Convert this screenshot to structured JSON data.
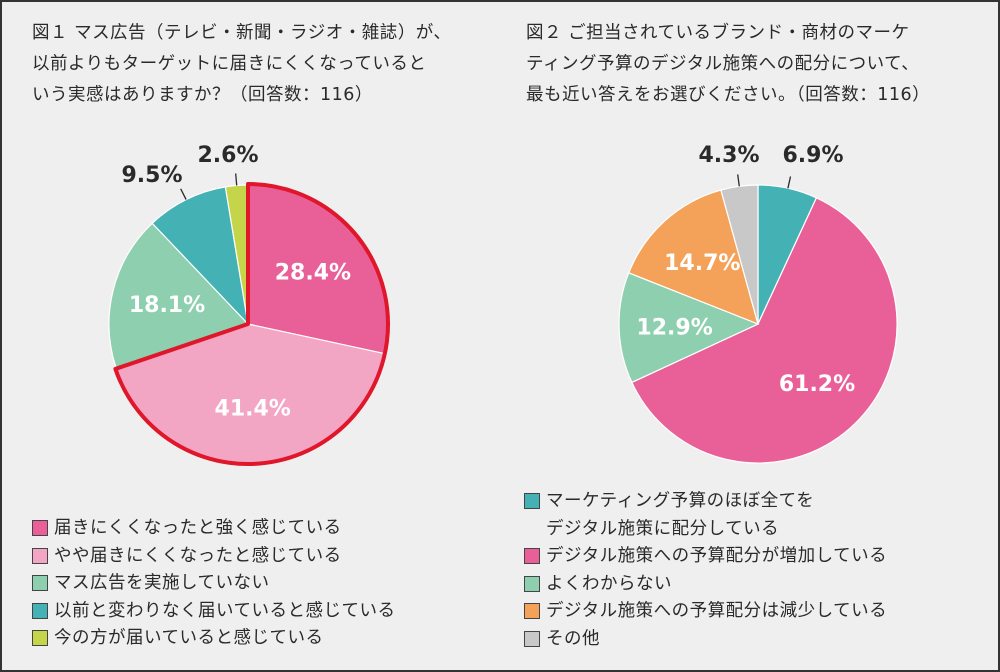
{
  "chart_data": [
    {
      "type": "pie",
      "title_lines": [
        "図１ マス広告（テレビ・新聞・ラジオ・雑誌）が、",
        "以前よりもターゲットに届きにくくなっていると",
        "いう実感はありますか？（回答数：116）"
      ],
      "labels": [
        "届きにくくなったと強く感じている",
        "やや届きにくくなったと感じている",
        "マス広告を実施していない",
        "以前と変わりなく届いていると感じている",
        "今の方が届いていると感じている"
      ],
      "values": [
        28.4,
        41.4,
        18.1,
        9.5,
        2.6
      ],
      "value_labels": [
        "28.4%",
        "41.4%",
        "18.1%",
        "9.5%",
        "2.6%"
      ],
      "colors": [
        "#e96099",
        "#f3a6c4",
        "#8dcfae",
        "#44b2b5",
        "#c4d54a"
      ],
      "label_style": [
        "inside",
        "inside",
        "inside",
        "outside",
        "outside"
      ],
      "highlight": {
        "slices": [
          0,
          1
        ],
        "color": "#e0162b"
      }
    },
    {
      "type": "pie",
      "title_lines": [
        "図２ ご担当されているブランド・商材のマーケ",
        "ティング予算のデジタル施策への配分について、",
        "最も近い答えをお選びください。（回答数：116）"
      ],
      "labels": [
        [
          "マーケティング予算のほぼ全てを",
          "デジタル施策に配分している"
        ],
        "デジタル施策への予算配分が増加している",
        "よくわからない",
        "デジタル施策への予算配分は減少している",
        "その他"
      ],
      "values": [
        6.9,
        61.2,
        12.9,
        14.7,
        4.3
      ],
      "value_labels": [
        "6.9%",
        "61.2%",
        "12.9%",
        "14.7%",
        "4.3%"
      ],
      "colors": [
        "#44b2b5",
        "#e96099",
        "#8dcfae",
        "#f4a25a",
        "#c8c8c8"
      ],
      "label_style": [
        "outside",
        "inside",
        "inside",
        "inside",
        "outside"
      ]
    }
  ]
}
